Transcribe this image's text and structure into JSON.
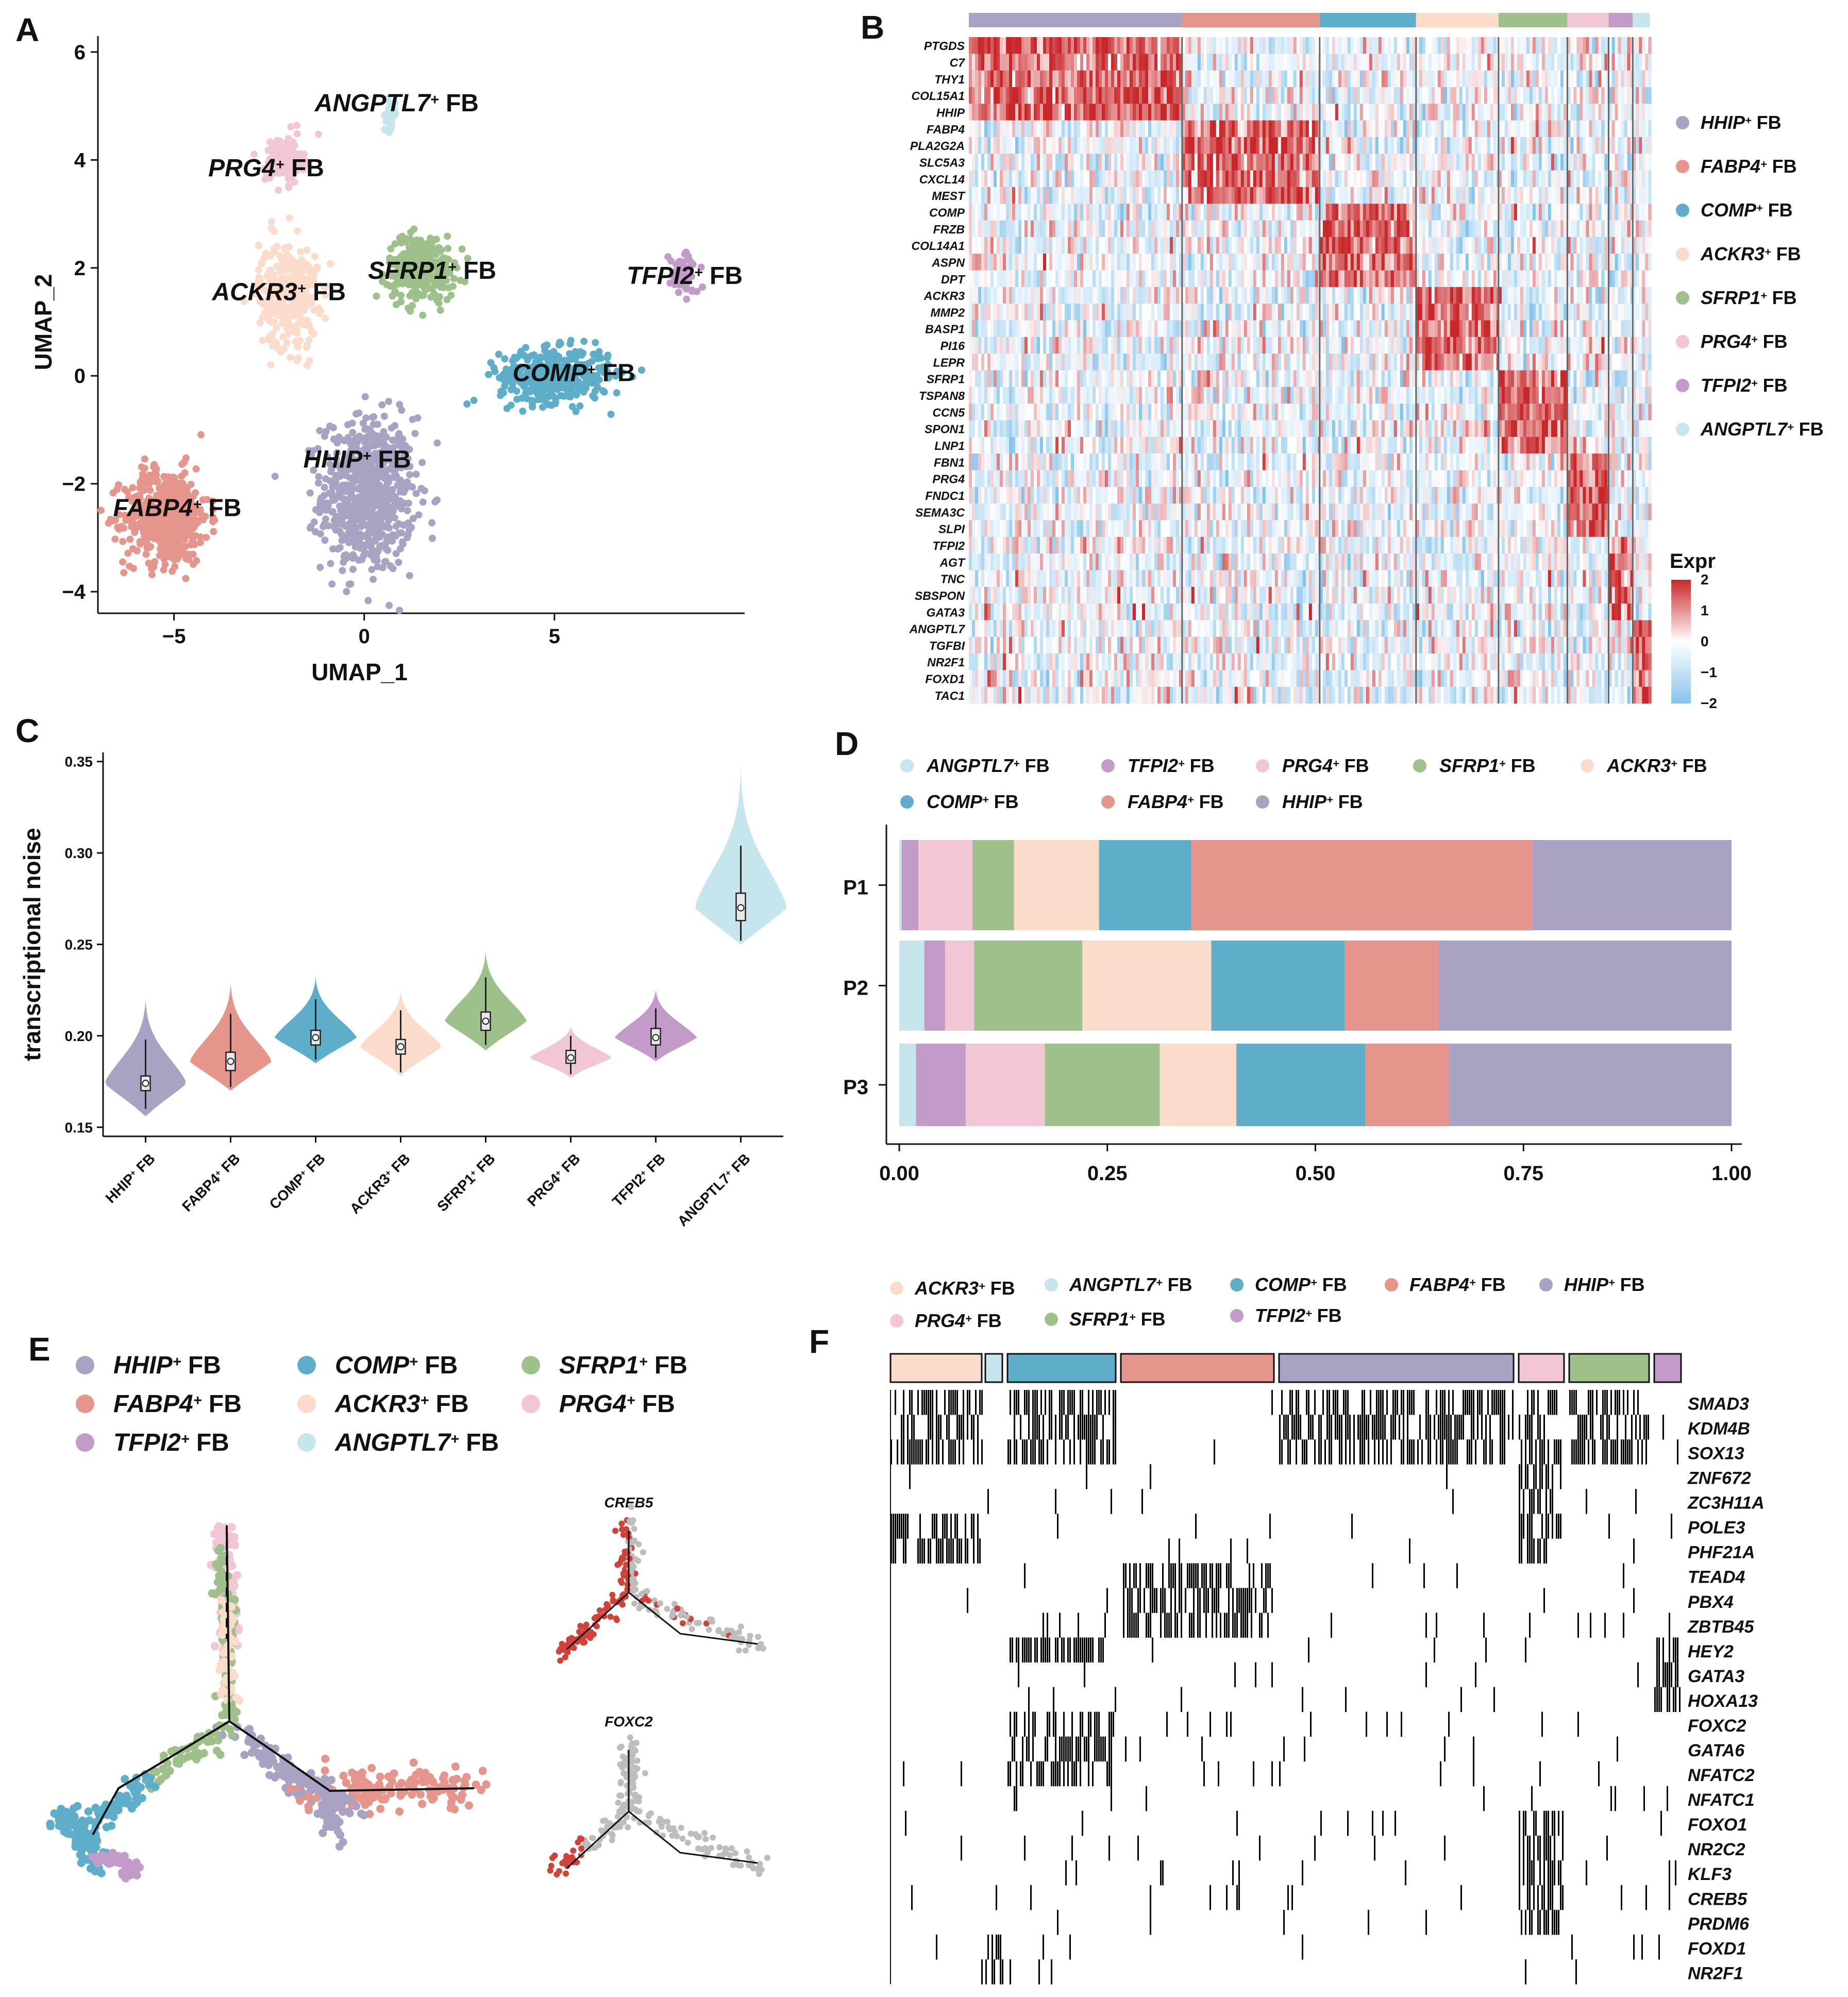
{
  "colors": {
    "HHIP": "#a9a2c3",
    "FABP4": "#e5958c",
    "COMP": "#5eaec9",
    "ACKR3": "#fbdccb",
    "SFRP1": "#9ec08a",
    "PRG4": "#f3c6d6",
    "TFPI2": "#c39bc8",
    "ANGPTL7": "#c7e5ec",
    "heat_high": "#c8282a",
    "heat_low": "#86c3ea"
  },
  "panel_labels": {
    "A": "A",
    "B": "B",
    "C": "C",
    "D": "D",
    "E": "E",
    "F": "F"
  },
  "cluster_suffix": "FB",
  "clusters": [
    {
      "key": "HHIP",
      "gene": "HHIP",
      "sup": "+"
    },
    {
      "key": "FABP4",
      "gene": "FABP4",
      "sup": "+"
    },
    {
      "key": "COMP",
      "gene": "COMP",
      "sup": "+"
    },
    {
      "key": "ACKR3",
      "gene": "ACKR3",
      "sup": "+"
    },
    {
      "key": "SFRP1",
      "gene": "SFRP1",
      "sup": "+"
    },
    {
      "key": "PRG4",
      "gene": "PRG4",
      "sup": "+"
    },
    {
      "key": "TFPI2",
      "gene": "TFPI2",
      "sup": "+"
    },
    {
      "key": "ANGPTL7",
      "gene": "ANGPTL7",
      "sup": "+"
    }
  ],
  "panelA": {
    "chart_data": {
      "type": "scatter",
      "title": "",
      "xlabel": "UMAP_1",
      "ylabel": "UMAP_2",
      "xlim": [
        -7,
        10
      ],
      "ylim": [
        -4.4,
        6.2
      ],
      "xticks": [
        "−5",
        "0",
        "5"
      ],
      "xtick_values": [
        -5,
        0,
        5
      ],
      "yticks": [
        "−4",
        "−2",
        "0",
        "2",
        "4",
        "6"
      ],
      "ytick_values": [
        -4,
        -2,
        0,
        2,
        4,
        6
      ],
      "cluster_centers": [
        {
          "cluster": "HHIP",
          "x": 0.1,
          "y": -2.2,
          "label_x": -1.6,
          "label_y": -1.7
        },
        {
          "cluster": "FABP4",
          "x": -5.2,
          "y": -2.6,
          "label_x": -6.6,
          "label_y": -2.6
        },
        {
          "cluster": "COMP",
          "x": 5.0,
          "y": 0.0,
          "label_x": 3.9,
          "label_y": -0.1
        },
        {
          "cluster": "ACKR3",
          "x": -2.0,
          "y": 1.5,
          "label_x": -4.0,
          "label_y": 1.4
        },
        {
          "cluster": "SFRP1",
          "x": 1.5,
          "y": 2.0,
          "label_x": 0.1,
          "label_y": 1.8
        },
        {
          "cluster": "PRG4",
          "x": -2.1,
          "y": 4.0,
          "label_x": -4.1,
          "label_y": 3.7
        },
        {
          "cluster": "TFPI2",
          "x": 8.4,
          "y": 1.9,
          "label_x": 6.9,
          "label_y": 1.7
        },
        {
          "cluster": "ANGPTL7",
          "x": 0.7,
          "y": 4.8,
          "label_x": -1.3,
          "label_y": 4.9
        }
      ]
    }
  },
  "panelB": {
    "chart_data": {
      "type": "heatmap",
      "legend_title": "Expr",
      "scale_ticks": [
        "2",
        "1",
        "0",
        "−1",
        "−2"
      ],
      "scale_values": [
        2,
        1,
        0,
        -1,
        -2
      ],
      "cluster_order": [
        "HHIP",
        "FABP4",
        "COMP",
        "ACKR3",
        "SFRP1",
        "PRG4",
        "TFPI2",
        "ANGPTL7"
      ],
      "cluster_fraction": [
        0.31,
        0.2,
        0.14,
        0.12,
        0.1,
        0.06,
        0.035,
        0.025
      ],
      "genes": [
        "PTGDS",
        "C7",
        "THY1",
        "COL15A1",
        "HHIP",
        "FABP4",
        "PLA2G2A",
        "SLC5A3",
        "CXCL14",
        "MEST",
        "COMP",
        "FRZB",
        "COL14A1",
        "ASPN",
        "DPT",
        "ACKR3",
        "MMP2",
        "BASP1",
        "PI16",
        "LEPR",
        "SFRP1",
        "TSPAN8",
        "CCN5",
        "SPON1",
        "LNP1",
        "FBN1",
        "PRG4",
        "FNDC1",
        "SEMA3C",
        "SLPI",
        "TFPI2",
        "AGT",
        "TNC",
        "SBSPON",
        "GATA3",
        "ANGPTL7",
        "TGFBI",
        "NR2F1",
        "FOXD1",
        "TAC1"
      ],
      "gene_marker_cluster": [
        "HHIP",
        "HHIP",
        "HHIP",
        "HHIP",
        "HHIP",
        "FABP4",
        "FABP4",
        "FABP4",
        "FABP4",
        "FABP4",
        "COMP",
        "COMP",
        "COMP",
        "COMP",
        "COMP",
        "ACKR3",
        "ACKR3",
        "ACKR3",
        "ACKR3",
        "ACKR3",
        "SFRP1",
        "SFRP1",
        "SFRP1",
        "SFRP1",
        "SFRP1",
        "PRG4",
        "PRG4",
        "PRG4",
        "PRG4",
        "PRG4",
        "TFPI2",
        "TFPI2",
        "TFPI2",
        "TFPI2",
        "TFPI2",
        "ANGPTL7",
        "ANGPTL7",
        "ANGPTL7",
        "ANGPTL7",
        "ANGPTL7"
      ]
    }
  },
  "panelC": {
    "chart_data": {
      "type": "violin",
      "ylabel": "transcriptional noise",
      "ylim": [
        0.145,
        0.355
      ],
      "yticks": [
        "0.15",
        "0.20",
        "0.25",
        "0.30",
        "0.35"
      ],
      "ytick_values": [
        0.15,
        0.2,
        0.25,
        0.3,
        0.35
      ],
      "categories": [
        "HHIP",
        "FABP4",
        "COMP",
        "ACKR3",
        "SFRP1",
        "PRG4",
        "TFPI2",
        "ANGPTL7"
      ],
      "median": [
        0.174,
        0.186,
        0.199,
        0.194,
        0.208,
        0.188,
        0.199,
        0.27
      ],
      "q1": [
        0.17,
        0.181,
        0.195,
        0.19,
        0.203,
        0.185,
        0.195,
        0.263
      ],
      "q3": [
        0.178,
        0.191,
        0.203,
        0.198,
        0.213,
        0.192,
        0.204,
        0.278
      ],
      "min": [
        0.156,
        0.17,
        0.185,
        0.178,
        0.192,
        0.177,
        0.186,
        0.25
      ],
      "max": [
        0.22,
        0.229,
        0.232,
        0.224,
        0.246,
        0.205,
        0.225,
        0.348
      ],
      "wlo": [
        0.16,
        0.172,
        0.187,
        0.18,
        0.195,
        0.179,
        0.188,
        0.252
      ],
      "whi": [
        0.198,
        0.212,
        0.22,
        0.214,
        0.232,
        0.2,
        0.215,
        0.304
      ]
    }
  },
  "panelD": {
    "chart_data": {
      "type": "bar",
      "orientation": "horizontal-stacked",
      "xlim": [
        0,
        1
      ],
      "xticks": [
        "0.00",
        "0.25",
        "0.50",
        "0.75",
        "1.00"
      ],
      "xtick_values": [
        0,
        0.25,
        0.5,
        0.75,
        1.0
      ],
      "categories": [
        "P1",
        "P2",
        "P3"
      ],
      "legend_order": [
        "ANGPTL7",
        "TFPI2",
        "PRG4",
        "SFRP1",
        "ACKR3",
        "COMP",
        "FABP4",
        "HHIP"
      ],
      "series": [
        {
          "name": "ANGPTL7",
          "values": [
            0.003,
            0.03,
            0.02
          ]
        },
        {
          "name": "TFPI2",
          "values": [
            0.02,
            0.025,
            0.06
          ]
        },
        {
          "name": "PRG4",
          "values": [
            0.065,
            0.035,
            0.095
          ]
        },
        {
          "name": "SFRP1",
          "values": [
            0.05,
            0.13,
            0.138
          ]
        },
        {
          "name": "ACKR3",
          "values": [
            0.102,
            0.155,
            0.092
          ]
        },
        {
          "name": "COMP",
          "values": [
            0.111,
            0.16,
            0.155
          ]
        },
        {
          "name": "FABP4",
          "values": [
            0.41,
            0.113,
            0.1
          ]
        },
        {
          "name": "HHIP",
          "values": [
            0.239,
            0.352,
            0.34
          ]
        }
      ]
    }
  },
  "panelE": {
    "legend": [
      "HHIP",
      "COMP",
      "SFRP1",
      "FABP4",
      "ACKR3",
      "PRG4",
      "TFPI2",
      "ANGPTL7"
    ],
    "small_titles": [
      "CREB5",
      "FOXC2"
    ]
  },
  "panelF": {
    "legend": [
      "ACKR3",
      "ANGPTL7",
      "COMP",
      "FABP4",
      "HHIP",
      "PRG4",
      "SFRP1",
      "TFPI2"
    ],
    "cluster_order": [
      "ACKR3",
      "ANGPTL7",
      "COMP",
      "FABP4",
      "HHIP",
      "PRG4",
      "SFRP1",
      "TFPI2"
    ],
    "genes": [
      "SMAD3",
      "KDM4B",
      "SOX13",
      "ZNF672",
      "ZC3H11A",
      "POLE3",
      "PHF21A",
      "TEAD4",
      "PBX4",
      "ZBTB45",
      "HEY2",
      "GATA3",
      "HOXA13",
      "FOXC2",
      "GATA6",
      "NFATC2",
      "NFATC1",
      "FOXO1",
      "NR2C2",
      "KLF3",
      "CREB5",
      "PRDM6",
      "FOXD1",
      "NR2F1"
    ]
  }
}
